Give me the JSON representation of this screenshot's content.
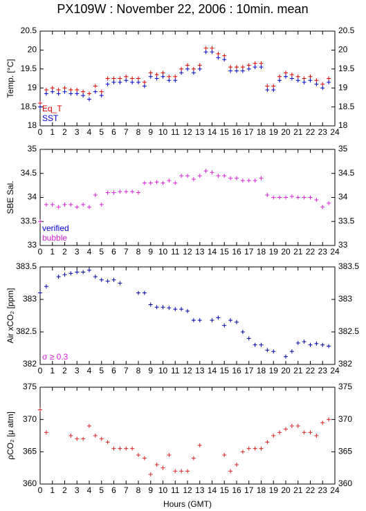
{
  "chart_data": [
    {
      "type": "scatter",
      "title": "PX109W : November 22, 2006 : 10min. mean",
      "ylabel": "Temp. [°C]",
      "x": [
        0,
        0.5,
        1,
        1.5,
        2,
        2.5,
        3,
        3.5,
        4,
        4.5,
        5,
        5.5,
        6,
        6.5,
        7,
        7.5,
        8,
        8.5,
        9,
        9.5,
        10,
        10.5,
        11,
        11.5,
        12,
        12.5,
        13,
        13.5,
        14,
        14.5,
        15,
        15.5,
        16,
        16.5,
        17,
        17.5,
        18,
        18.5,
        19,
        19.5,
        20,
        20.5,
        21,
        21.5,
        22,
        22.5,
        23,
        23.5
      ],
      "xlim": [
        0,
        24
      ],
      "xticks": [
        0,
        1,
        2,
        3,
        4,
        5,
        6,
        7,
        8,
        9,
        10,
        11,
        12,
        13,
        14,
        15,
        16,
        17,
        18,
        19,
        20,
        21,
        22,
        23,
        24
      ],
      "ylim": [
        18,
        20.5
      ],
      "yticks": [
        18,
        18.5,
        19,
        19.5,
        20,
        20.5
      ],
      "series": [
        {
          "name": "Eq_T",
          "color": "#dd0000",
          "values": [
            18.6,
            18.95,
            19.0,
            18.95,
            19.0,
            18.95,
            18.95,
            18.9,
            18.85,
            19.05,
            18.9,
            19.25,
            19.25,
            19.25,
            19.3,
            19.25,
            19.25,
            19.15,
            19.4,
            19.35,
            19.4,
            19.3,
            19.3,
            19.5,
            19.6,
            19.5,
            19.6,
            20.05,
            20.05,
            19.9,
            19.85,
            19.55,
            19.55,
            19.55,
            19.6,
            19.65,
            19.65,
            19.05,
            19.05,
            19.3,
            19.4,
            19.35,
            19.3,
            19.25,
            19.3,
            19.2,
            19.1,
            19.25
          ]
        },
        {
          "name": "SST",
          "color": "#0000cc",
          "values": [
            18.5,
            18.85,
            18.9,
            18.85,
            18.9,
            18.85,
            18.85,
            18.8,
            18.7,
            18.9,
            18.8,
            19.1,
            19.15,
            19.15,
            19.2,
            19.15,
            19.15,
            19.05,
            19.3,
            19.25,
            19.3,
            19.2,
            19.2,
            19.4,
            19.5,
            19.4,
            19.5,
            19.95,
            19.95,
            19.8,
            19.75,
            19.45,
            19.45,
            19.45,
            19.5,
            19.55,
            19.55,
            18.95,
            18.95,
            19.2,
            19.3,
            19.25,
            19.2,
            19.15,
            19.2,
            19.1,
            19.0,
            19.15
          ]
        }
      ]
    },
    {
      "type": "scatter",
      "ylabel": "SBE Sal.",
      "x": [
        0,
        0.5,
        1,
        1.5,
        2,
        2.5,
        3,
        3.5,
        4,
        4.5,
        5,
        5.5,
        6,
        6.5,
        7,
        7.5,
        8,
        8.5,
        9,
        9.5,
        10,
        10.5,
        11,
        11.5,
        12,
        12.5,
        13,
        13.5,
        14,
        14.5,
        15,
        15.5,
        16,
        16.5,
        17,
        17.5,
        18,
        18.5,
        19,
        19.5,
        20,
        20.5,
        21,
        21.5,
        22,
        22.5,
        23,
        23.5
      ],
      "xlim": [
        0,
        24
      ],
      "xticks": [
        0,
        1,
        2,
        3,
        4,
        5,
        6,
        7,
        8,
        9,
        10,
        11,
        12,
        13,
        14,
        15,
        16,
        17,
        18,
        19,
        20,
        21,
        22,
        23,
        24
      ],
      "ylim": [
        33,
        35
      ],
      "yticks": [
        33,
        33.5,
        34,
        34.5,
        35
      ],
      "annotations": [
        {
          "text": "verified",
          "color": "#0000cc"
        },
        {
          "text": "bubble",
          "color": "#dd22dd"
        }
      ],
      "series": [
        {
          "color": "#dd22dd",
          "values": [
            33.5,
            33.85,
            33.85,
            33.8,
            33.85,
            33.85,
            33.8,
            33.85,
            33.8,
            34.05,
            33.85,
            34.1,
            34.1,
            34.12,
            34.12,
            34.12,
            34.1,
            34.3,
            34.3,
            34.32,
            34.3,
            34.35,
            34.3,
            34.45,
            34.45,
            34.38,
            34.45,
            34.55,
            34.52,
            34.45,
            34.45,
            34.4,
            34.4,
            34.35,
            34.35,
            34.35,
            34.4,
            34.05,
            34.0,
            34.0,
            34.0,
            34.02,
            34.0,
            34.0,
            34.0,
            33.95,
            33.8,
            33.88
          ]
        }
      ]
    },
    {
      "type": "scatter",
      "ylabel": "Air xCO₂ [ppm]",
      "x": [
        0,
        0.5,
        1,
        1.5,
        2,
        2.5,
        3,
        3.5,
        4,
        4.5,
        5,
        5.5,
        6,
        6.5,
        7,
        7.5,
        8,
        8.5,
        9,
        9.5,
        10,
        10.5,
        11,
        11.5,
        12,
        12.5,
        13,
        13.5,
        14,
        14.5,
        15,
        15.5,
        16,
        16.5,
        17,
        17.5,
        18,
        18.5,
        19,
        19.5,
        20,
        20.5,
        21,
        21.5,
        22,
        22.5,
        23,
        23.5
      ],
      "xlim": [
        0,
        24
      ],
      "xticks": [
        0,
        1,
        2,
        3,
        4,
        5,
        6,
        7,
        8,
        9,
        10,
        11,
        12,
        13,
        14,
        15,
        16,
        17,
        18,
        19,
        20,
        21,
        22,
        23,
        24
      ],
      "ylim": [
        382,
        383.5
      ],
      "yticks": [
        382,
        382.5,
        383,
        383.5
      ],
      "annotations": [
        {
          "text": "σ ≥ 0.3",
          "color": "#dd22dd"
        }
      ],
      "series": [
        {
          "color": "#0000aa",
          "values": [
            383.1,
            383.2,
            null,
            383.35,
            383.38,
            383.4,
            383.42,
            383.42,
            383.45,
            383.35,
            383.3,
            383.28,
            383.3,
            383.25,
            null,
            null,
            383.1,
            383.1,
            382.92,
            382.88,
            382.88,
            382.87,
            382.85,
            382.85,
            382.82,
            382.68,
            382.68,
            null,
            382.68,
            382.72,
            382.6,
            382.68,
            382.65,
            382.5,
            382.4,
            382.3,
            382.3,
            382.22,
            382.2,
            null,
            382.12,
            382.2,
            382.33,
            382.35,
            382.3,
            382.32,
            382.3,
            382.28
          ]
        }
      ]
    },
    {
      "type": "scatter",
      "ylabel": "ρCO₂ [μ atm]",
      "xlabel": "Hours (GMT)",
      "x": [
        0,
        0.5,
        1,
        1.5,
        2,
        2.5,
        3,
        3.5,
        4,
        4.5,
        5,
        5.5,
        6,
        6.5,
        7,
        7.5,
        8,
        8.5,
        9,
        9.5,
        10,
        10.5,
        11,
        11.5,
        12,
        12.5,
        13,
        13.5,
        14,
        14.5,
        15,
        15.5,
        16,
        16.5,
        17,
        17.5,
        18,
        18.5,
        19,
        19.5,
        20,
        20.5,
        21,
        21.5,
        22,
        22.5,
        23,
        23.5
      ],
      "xlim": [
        0,
        24
      ],
      "xticks": [
        0,
        1,
        2,
        3,
        4,
        5,
        6,
        7,
        8,
        9,
        10,
        11,
        12,
        13,
        14,
        15,
        16,
        17,
        18,
        19,
        20,
        21,
        22,
        23,
        24
      ],
      "ylim": [
        360,
        375
      ],
      "yticks": [
        360,
        365,
        370,
        375
      ],
      "series": [
        {
          "color": "#dd2222",
          "values": [
            371.5,
            368,
            null,
            null,
            null,
            367.5,
            367,
            367,
            369,
            367.5,
            367,
            366.5,
            365.5,
            365.5,
            365.5,
            365.5,
            364.5,
            364,
            361.5,
            363,
            362.5,
            364.5,
            362,
            362,
            362,
            364,
            366,
            null,
            null,
            null,
            364.5,
            362,
            363,
            365,
            365.5,
            365.5,
            365.5,
            366.5,
            367.5,
            368,
            368.5,
            369,
            369,
            368,
            368,
            367.5,
            369.5,
            370
          ]
        }
      ]
    }
  ]
}
